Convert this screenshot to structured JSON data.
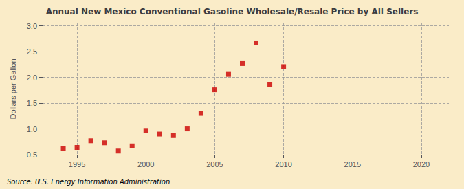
{
  "chart_data": {
    "type": "scatter",
    "title": "Annual New Mexico Conventional Gasoline Wholesale/Resale Price by All Sellers",
    "ylabel": "Dollars per Gallon",
    "source": "Source: U.S. Energy Information Administration",
    "x": [
      1994,
      1995,
      1996,
      1997,
      1998,
      1999,
      2000,
      2001,
      2002,
      2003,
      2004,
      2005,
      2006,
      2007,
      2008,
      2009,
      2010
    ],
    "values": [
      0.62,
      0.64,
      0.77,
      0.73,
      0.57,
      0.67,
      0.97,
      0.9,
      0.87,
      1.0,
      1.3,
      1.76,
      2.06,
      2.27,
      2.67,
      1.86,
      2.21
    ],
    "color": "#cc0000",
    "marker": "square",
    "xlim": [
      1992.5,
      2022
    ],
    "ylim": [
      0.5,
      3.05
    ],
    "xticks": [
      1995,
      2000,
      2005,
      2010,
      2015,
      2020
    ],
    "yticks": [
      0.5,
      {
        "value": 1,
        "label": "1.0"
      },
      1.5,
      {
        "value": 2,
        "label": "2.0"
      },
      2.5,
      {
        "value": 3,
        "label": "3.0"
      }
    ],
    "grid": true
  }
}
